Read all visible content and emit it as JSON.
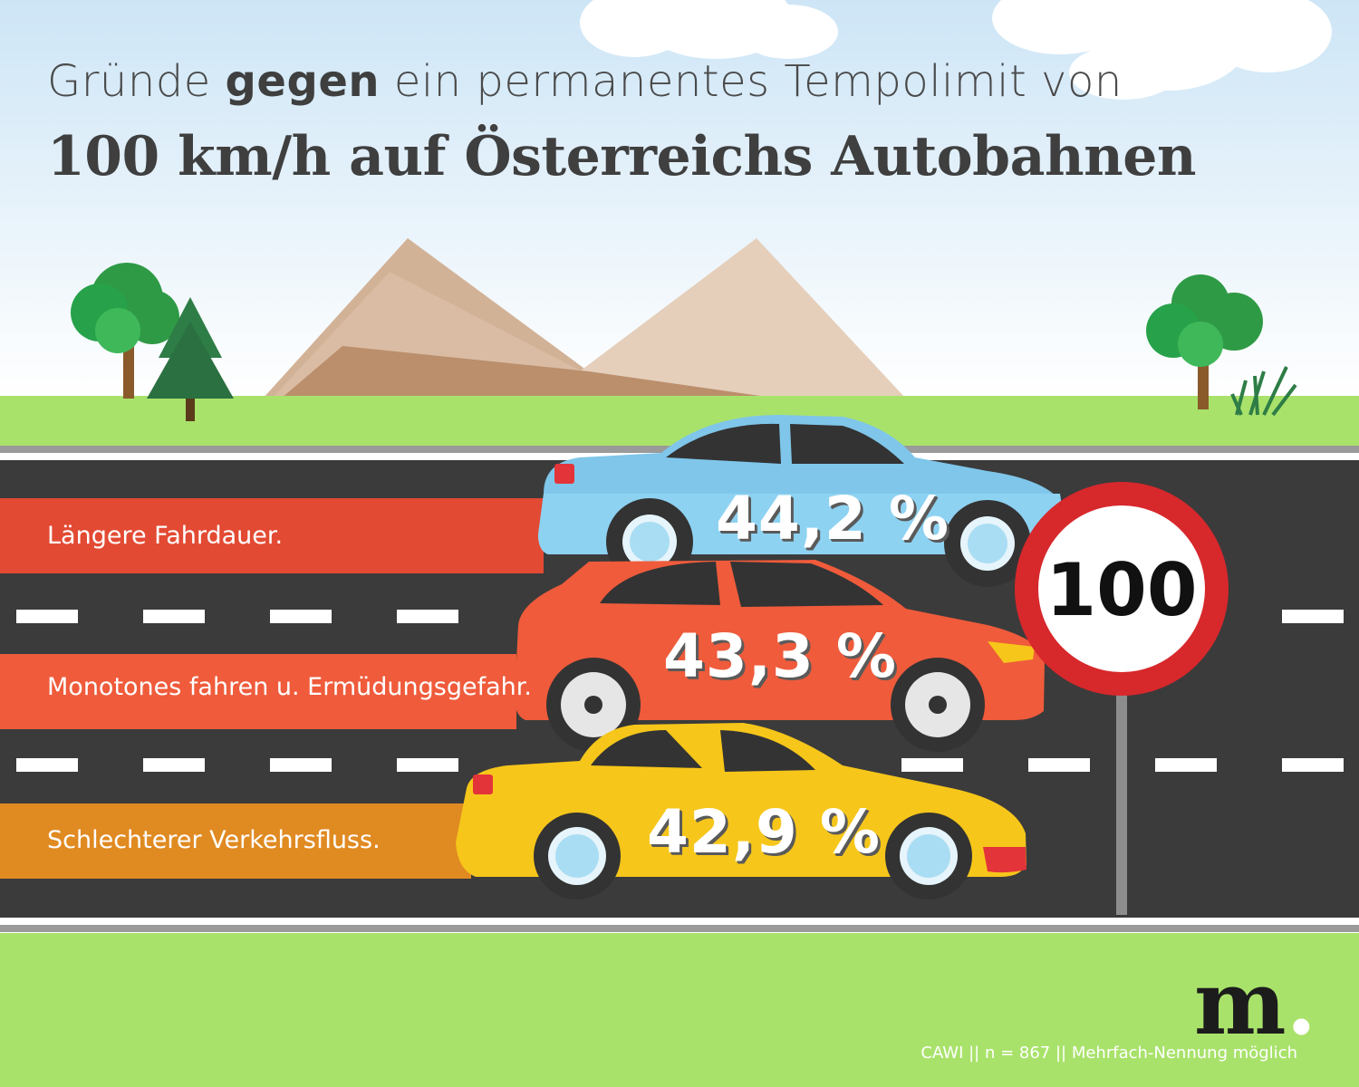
{
  "title": {
    "prefix": "Gründe",
    "emphasis": "gegen",
    "suffix": "ein permanentes Tempolimit von",
    "line2": "100 km/h auf Österreichs Autobahnen"
  },
  "chart_data": {
    "type": "bar",
    "title": "Gründe gegen ein permanentes Tempolimit von 100 km/h auf Österreichs Autobahnen",
    "unit": "%",
    "categories": [
      "Längere Fahrdauer.",
      "Monotones fahren u. Ermüdungsgefahr.",
      "Schlechterer Verkehrsfluss."
    ],
    "values": [
      44.2,
      43.3,
      42.9
    ],
    "value_labels": [
      "44,2 %",
      "43,3 %",
      "42,9 %"
    ],
    "bar_colors": [
      "#e34a33",
      "#ef5b3b",
      "#e08a22"
    ]
  },
  "sign": {
    "label": "100"
  },
  "logo": {
    "letter": "m",
    "dot": "."
  },
  "footnote": "CAWI || n = 867 || Mehrfach-Nennung möglich",
  "colors": {
    "sky_top": "#cfe6f7",
    "grass": "#a9e26b",
    "road": "#3b3b3b",
    "car_blue": "#7fc6ea",
    "car_red": "#ef5b3b",
    "car_yellow": "#f6c61a",
    "sign_red": "#d7282c"
  }
}
